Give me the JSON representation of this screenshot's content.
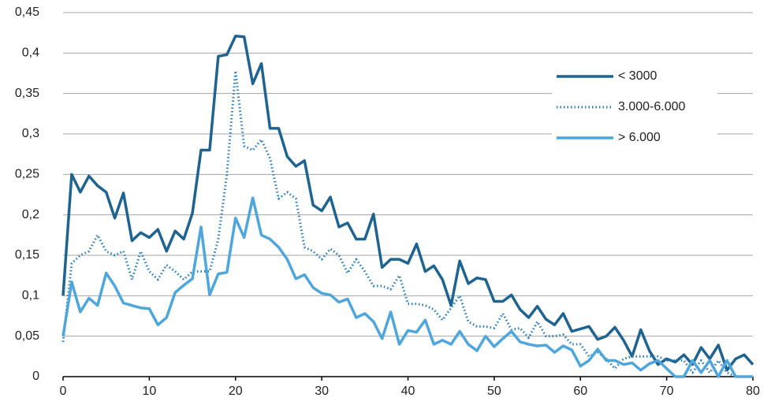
{
  "chart_data": {
    "type": "line",
    "x": [
      0,
      1,
      2,
      3,
      4,
      5,
      6,
      7,
      8,
      9,
      10,
      11,
      12,
      13,
      14,
      15,
      16,
      17,
      18,
      19,
      20,
      21,
      22,
      23,
      24,
      25,
      26,
      27,
      28,
      29,
      30,
      31,
      32,
      33,
      34,
      35,
      36,
      37,
      38,
      39,
      40,
      41,
      42,
      43,
      44,
      45,
      46,
      47,
      48,
      49,
      50,
      51,
      52,
      53,
      54,
      55,
      56,
      57,
      58,
      59,
      60,
      61,
      62,
      63,
      64,
      65,
      66,
      67,
      68,
      69,
      70,
      71,
      72,
      73,
      74,
      75,
      76,
      77,
      78,
      79,
      80
    ],
    "series": [
      {
        "name": "< 3000",
        "color": "#1f6391",
        "style": "solid",
        "values": [
          0.1,
          0.25,
          0.228,
          0.248,
          0.236,
          0.228,
          0.196,
          0.227,
          0.168,
          0.178,
          0.172,
          0.182,
          0.155,
          0.18,
          0.17,
          0.202,
          0.28,
          0.28,
          0.396,
          0.398,
          0.421,
          0.42,
          0.362,
          0.387,
          0.307,
          0.307,
          0.272,
          0.26,
          0.267,
          0.212,
          0.205,
          0.222,
          0.185,
          0.19,
          0.17,
          0.17,
          0.201,
          0.135,
          0.145,
          0.145,
          0.14,
          0.164,
          0.13,
          0.137,
          0.12,
          0.088,
          0.143,
          0.115,
          0.122,
          0.12,
          0.093,
          0.093,
          0.101,
          0.083,
          0.073,
          0.087,
          0.071,
          0.064,
          0.078,
          0.056,
          0.059,
          0.062,
          0.046,
          0.05,
          0.061,
          0.045,
          0.025,
          0.058,
          0.032,
          0.015,
          0.022,
          0.018,
          0.027,
          0.015,
          0.036,
          0.022,
          0.039,
          0.008,
          0.022,
          0.027,
          0.015
        ]
      },
      {
        "name": "3.000-6.000",
        "color": "#2c7db5",
        "style": "dotted",
        "values": [
          0.043,
          0.14,
          0.15,
          0.155,
          0.175,
          0.155,
          0.15,
          0.155,
          0.12,
          0.155,
          0.13,
          0.12,
          0.138,
          0.13,
          0.12,
          0.13,
          0.13,
          0.13,
          0.17,
          0.25,
          0.378,
          0.285,
          0.28,
          0.293,
          0.27,
          0.22,
          0.228,
          0.22,
          0.16,
          0.155,
          0.145,
          0.158,
          0.15,
          0.128,
          0.145,
          0.13,
          0.112,
          0.112,
          0.108,
          0.125,
          0.09,
          0.09,
          0.088,
          0.083,
          0.07,
          0.085,
          0.1,
          0.068,
          0.062,
          0.062,
          0.06,
          0.078,
          0.058,
          0.06,
          0.048,
          0.068,
          0.05,
          0.05,
          0.052,
          0.04,
          0.04,
          0.025,
          0.03,
          0.022,
          0.01,
          0.022,
          0.025,
          0.025,
          0.025,
          0.025,
          0.02,
          0.02,
          0.02,
          0.005,
          0.02,
          0.005,
          0.02,
          0.005,
          0,
          0,
          0
        ]
      },
      {
        "name": "> 6.000",
        "color": "#4ea6dc",
        "style": "solid",
        "values": [
          0.05,
          0.117,
          0.08,
          0.097,
          0.088,
          0.128,
          0.112,
          0.091,
          0.088,
          0.085,
          0.084,
          0.064,
          0.073,
          0.104,
          0.113,
          0.121,
          0.185,
          0.101,
          0.127,
          0.129,
          0.196,
          0.172,
          0.221,
          0.175,
          0.17,
          0.16,
          0.145,
          0.121,
          0.126,
          0.11,
          0.103,
          0.101,
          0.092,
          0.096,
          0.073,
          0.078,
          0.068,
          0.047,
          0.08,
          0.04,
          0.057,
          0.055,
          0.07,
          0.04,
          0.045,
          0.04,
          0.056,
          0.04,
          0.032,
          0.05,
          0.037,
          0.047,
          0.056,
          0.043,
          0.04,
          0.038,
          0.039,
          0.03,
          0.038,
          0.033,
          0.013,
          0.02,
          0.034,
          0.02,
          0.02,
          0.015,
          0.017,
          0.008,
          0.016,
          0.02,
          0.01,
          0,
          0,
          0.02,
          0.005,
          0.02,
          0,
          0.02,
          0,
          0,
          0
        ]
      }
    ],
    "xlim": [
      0,
      80
    ],
    "xticks": [
      0,
      10,
      20,
      30,
      40,
      50,
      60,
      70,
      80
    ],
    "ylim": [
      0,
      0.45
    ],
    "yticks": [
      0,
      {
        "value": 0.05,
        "label": "0,05"
      },
      {
        "value": 0.1,
        "label": "0,1"
      },
      {
        "value": 0.15,
        "label": "0,15"
      },
      {
        "value": 0.2,
        "label": "0,2"
      },
      {
        "value": 0.25,
        "label": "0,25"
      },
      {
        "value": 0.3,
        "label": "0,3"
      },
      {
        "value": 0.35,
        "label": "0,35"
      },
      {
        "value": 0.4,
        "label": "0,4"
      },
      {
        "value": 0.45,
        "label": "0,45"
      }
    ],
    "grid": true,
    "legend": "upper-right"
  }
}
